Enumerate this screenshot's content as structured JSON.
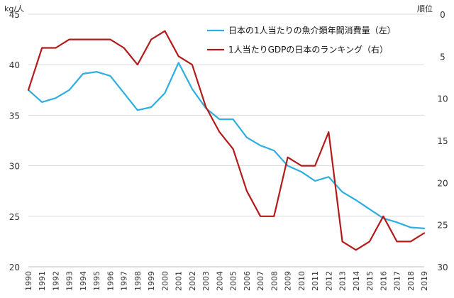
{
  "chart_data": {
    "type": "line",
    "x": [
      1990,
      1991,
      1992,
      1993,
      1994,
      1995,
      1996,
      1997,
      1998,
      1999,
      2000,
      2001,
      2002,
      2003,
      2004,
      2005,
      2006,
      2007,
      2008,
      2009,
      2010,
      2011,
      2012,
      2013,
      2014,
      2015,
      2016,
      2017,
      2018,
      2019
    ],
    "series": [
      {
        "name": "日本の1人当たりの魚介類年間消費量（左）",
        "axis": "left",
        "color": "#2eaee0",
        "values": [
          37.5,
          36.3,
          36.7,
          37.5,
          39.1,
          39.3,
          38.9,
          37.2,
          35.5,
          35.8,
          37.2,
          40.2,
          37.6,
          35.7,
          34.6,
          34.6,
          32.8,
          32.0,
          31.5,
          30.0,
          29.4,
          28.5,
          28.9,
          27.4,
          26.6,
          25.7,
          24.8,
          24.4,
          23.9,
          23.8
        ]
      },
      {
        "name": "1人当たりGDPの日本のランキング（右）",
        "axis": "right",
        "color": "#b31b1b",
        "values": [
          9,
          4,
          4,
          3,
          3,
          3,
          3,
          4,
          6,
          3,
          2,
          5,
          6,
          11,
          14,
          16,
          21,
          24,
          24,
          17,
          18,
          18,
          14,
          27,
          28,
          27,
          24,
          27,
          27,
          26
        ]
      }
    ],
    "y_left": {
      "unit": "kg/人",
      "min": 20,
      "max": 45,
      "ticks": [
        20,
        25,
        30,
        35,
        40,
        45
      ]
    },
    "y_right": {
      "unit": "順位",
      "min": 0,
      "max": 30,
      "reversed": true,
      "ticks": [
        0,
        5,
        10,
        15,
        20,
        25,
        30
      ]
    },
    "grid": "horizontal",
    "legend_position": "top-right"
  }
}
